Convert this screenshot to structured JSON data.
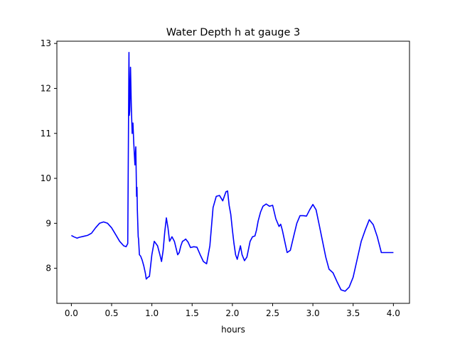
{
  "chart_data": {
    "type": "line",
    "title": "Water Depth h at gauge 3",
    "xlabel": "hours",
    "ylabel": "",
    "xlim": [
      -0.18,
      4.2
    ],
    "ylim": [
      7.22,
      13.05
    ],
    "xticks": [
      0.0,
      0.5,
      1.0,
      1.5,
      2.0,
      2.5,
      3.0,
      3.5,
      4.0
    ],
    "xtick_labels": [
      "0.0",
      "0.5",
      "1.0",
      "1.5",
      "2.0",
      "2.5",
      "3.0",
      "3.5",
      "4.0"
    ],
    "yticks": [
      8,
      9,
      10,
      11,
      12,
      13
    ],
    "ytick_labels": [
      "8",
      "9",
      "10",
      "11",
      "12",
      "13"
    ],
    "grid": false,
    "series": [
      {
        "color": "#0000ff",
        "x": [
          0.0,
          0.03,
          0.07,
          0.1,
          0.15,
          0.2,
          0.25,
          0.3,
          0.35,
          0.4,
          0.45,
          0.5,
          0.55,
          0.6,
          0.65,
          0.68,
          0.7,
          0.715,
          0.72,
          0.725,
          0.735,
          0.745,
          0.75,
          0.755,
          0.765,
          0.775,
          0.79,
          0.8,
          0.81,
          0.815,
          0.82,
          0.825,
          0.83,
          0.835,
          0.845,
          0.86,
          0.88,
          0.9,
          0.92,
          0.93,
          0.95,
          0.97,
          1.0,
          1.03,
          1.07,
          1.1,
          1.12,
          1.14,
          1.16,
          1.18,
          1.2,
          1.22,
          1.25,
          1.28,
          1.3,
          1.32,
          1.34,
          1.36,
          1.38,
          1.4,
          1.42,
          1.45,
          1.48,
          1.52,
          1.56,
          1.6,
          1.64,
          1.68,
          1.72,
          1.76,
          1.8,
          1.84,
          1.88,
          1.92,
          1.94,
          1.96,
          1.98,
          2.0,
          2.02,
          2.04,
          2.06,
          2.08,
          2.1,
          2.12,
          2.15,
          2.18,
          2.22,
          2.25,
          2.28,
          2.3,
          2.32,
          2.35,
          2.38,
          2.42,
          2.46,
          2.5,
          2.54,
          2.58,
          2.6,
          2.62,
          2.65,
          2.68,
          2.72,
          2.76,
          2.8,
          2.84,
          2.88,
          2.92,
          2.96,
          3.0,
          3.04,
          3.08,
          3.12,
          3.16,
          3.2,
          3.25,
          3.3,
          3.35,
          3.4,
          3.45,
          3.5,
          3.55,
          3.6,
          3.65,
          3.7,
          3.75,
          3.8,
          3.85,
          3.9,
          3.95,
          4.0
        ],
        "y": [
          8.73,
          8.7,
          8.67,
          8.69,
          8.71,
          8.73,
          8.78,
          8.9,
          9.0,
          9.03,
          9.0,
          8.9,
          8.75,
          8.6,
          8.5,
          8.48,
          8.55,
          12.8,
          11.4,
          11.5,
          12.47,
          11.6,
          11.3,
          11.0,
          11.23,
          10.8,
          10.3,
          10.7,
          9.6,
          9.8,
          9.3,
          9.0,
          8.7,
          8.65,
          8.3,
          8.27,
          8.18,
          8.05,
          7.88,
          7.76,
          7.8,
          7.82,
          8.3,
          8.6,
          8.5,
          8.3,
          8.15,
          8.4,
          8.8,
          9.12,
          8.9,
          8.6,
          8.7,
          8.6,
          8.45,
          8.3,
          8.35,
          8.5,
          8.6,
          8.62,
          8.65,
          8.58,
          8.46,
          8.48,
          8.47,
          8.3,
          8.15,
          8.1,
          8.5,
          9.35,
          9.6,
          9.62,
          9.5,
          9.7,
          9.72,
          9.4,
          9.2,
          8.85,
          8.55,
          8.3,
          8.2,
          8.35,
          8.5,
          8.3,
          8.17,
          8.25,
          8.6,
          8.7,
          8.72,
          8.85,
          9.05,
          9.25,
          9.38,
          9.43,
          9.38,
          9.4,
          9.1,
          8.93,
          8.98,
          8.85,
          8.6,
          8.35,
          8.4,
          8.7,
          9.0,
          9.17,
          9.17,
          9.16,
          9.3,
          9.42,
          9.3,
          8.95,
          8.6,
          8.25,
          7.98,
          7.9,
          7.7,
          7.52,
          7.49,
          7.58,
          7.8,
          8.2,
          8.6,
          8.85,
          9.08,
          8.97,
          8.7,
          8.35,
          8.35,
          8.35,
          8.35
        ]
      }
    ]
  }
}
